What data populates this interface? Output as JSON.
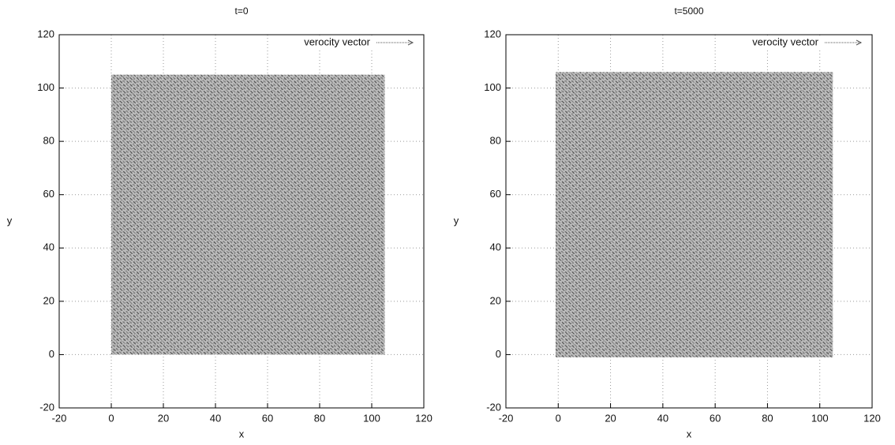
{
  "chart_data": [
    {
      "type": "quiver",
      "title": "t=0",
      "xlabel": "x",
      "ylabel": "y",
      "legend": "verocity vector",
      "x": [
        0,
        105
      ],
      "y": [
        0,
        105
      ],
      "xlim": [
        -20,
        120
      ],
      "ylim": [
        -20,
        120
      ],
      "xticks": [
        -20,
        0,
        20,
        40,
        60,
        80,
        100,
        120
      ],
      "yticks": [
        -20,
        0,
        20,
        40,
        60,
        80,
        100,
        120
      ],
      "grid": true,
      "legend_position": "upper right",
      "color": "#555555"
    },
    {
      "type": "quiver",
      "title": "t=5000",
      "xlabel": "x",
      "ylabel": "y",
      "legend": "verocity vector",
      "x": [
        -1,
        105
      ],
      "y": [
        -1,
        106
      ],
      "xlim": [
        -20,
        120
      ],
      "ylim": [
        -20,
        120
      ],
      "xticks": [
        -20,
        0,
        20,
        40,
        60,
        80,
        100,
        120
      ],
      "yticks": [
        -20,
        0,
        20,
        40,
        60,
        80,
        100,
        120
      ],
      "grid": true,
      "legend_position": "upper right",
      "color": "#555555"
    }
  ]
}
